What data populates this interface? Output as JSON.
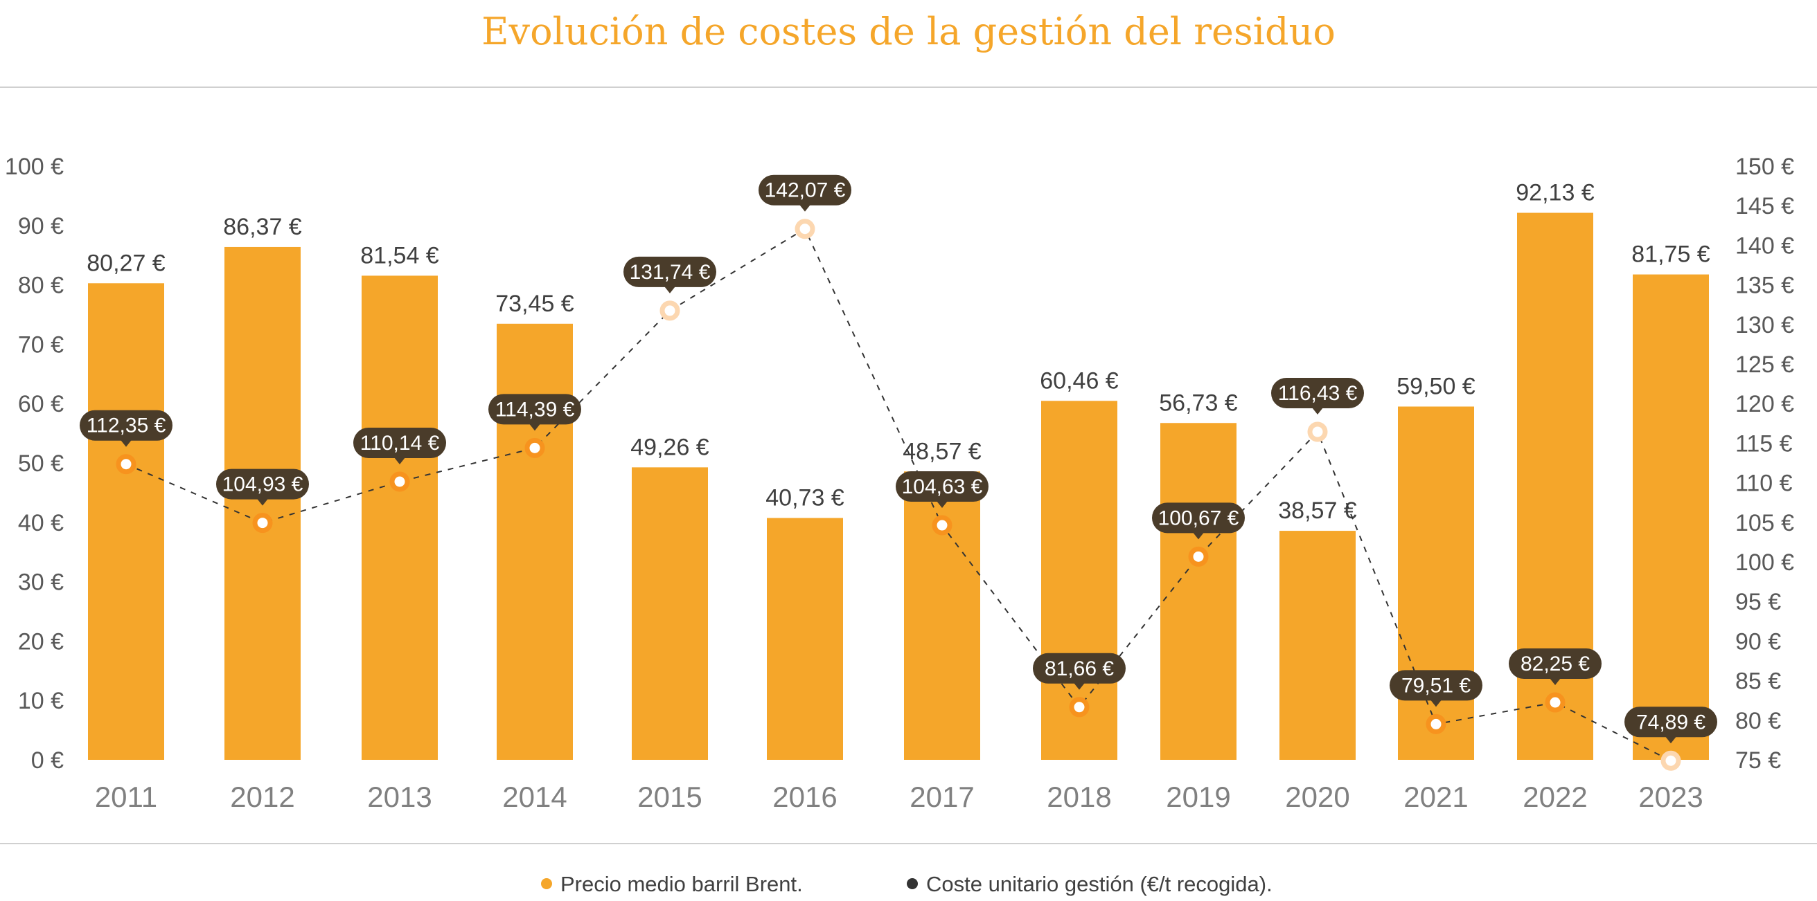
{
  "colors": {
    "bar": "#f5a62a",
    "callout_bg": "#4a3c2a",
    "line": "#333333",
    "marker_active": "#f7931e",
    "marker_faded": "#fcd7b0",
    "title": "#f5a62a",
    "rule": "#d0d0d0"
  },
  "chart_data": {
    "type": "bar",
    "title": "Evolución de costes de la gestión del residuo",
    "categories": [
      "2011",
      "2012",
      "2013",
      "2014",
      "2015",
      "2016",
      "2017",
      "2018",
      "2019",
      "2020",
      "2021",
      "2022",
      "2023"
    ],
    "series": [
      {
        "name": "Precio medio barril Brent.",
        "type": "bar",
        "axis": "left",
        "values": [
          80.27,
          86.37,
          81.54,
          73.45,
          49.26,
          40.73,
          48.57,
          60.46,
          56.73,
          38.57,
          59.5,
          92.13,
          81.75
        ],
        "labels": [
          "80,27 €",
          "86,37 €",
          "81,54 €",
          "73,45 €",
          "49,26 €",
          "40,73 €",
          "48,57 €",
          "60,46 €",
          "56,73 €",
          "38,57 €",
          "59,50 €",
          "92,13 €",
          "81,75 €"
        ]
      },
      {
        "name": "Coste unitario gestión (€/t recogida).",
        "type": "line",
        "axis": "right",
        "values": [
          112.35,
          104.93,
          110.14,
          114.39,
          131.74,
          142.07,
          104.63,
          81.66,
          100.67,
          116.43,
          79.51,
          82.25,
          74.89
        ],
        "labels": [
          "112,35 €",
          "104,93 €",
          "110,14 €",
          "114,39 €",
          "131,74 €",
          "142,07 €",
          "104,63 €",
          "81,66 €",
          "100,67 €",
          "116,43 €",
          "79,51 €",
          "82,25 €",
          "74,89 €"
        ],
        "faded": [
          false,
          false,
          false,
          false,
          true,
          true,
          false,
          false,
          false,
          true,
          false,
          false,
          true
        ]
      }
    ],
    "y_left": {
      "ylim": [
        0,
        100
      ],
      "ticks": [
        "0 €",
        "10 €",
        "20 €",
        "30 €",
        "40 €",
        "50 €",
        "60 €",
        "70 €",
        "80 €",
        "90 €",
        "100 €"
      ]
    },
    "y_right": {
      "ylim": [
        75,
        150
      ],
      "ticks": [
        "75 €",
        "80 €",
        "85 €",
        "90 €",
        "95 €",
        "100 €",
        "105 €",
        "110 €",
        "115 €",
        "120 €",
        "125 €",
        "130 €",
        "135 €",
        "140 €",
        "145 €",
        "150 €"
      ]
    },
    "grid": false,
    "legend_position": "bottom"
  }
}
